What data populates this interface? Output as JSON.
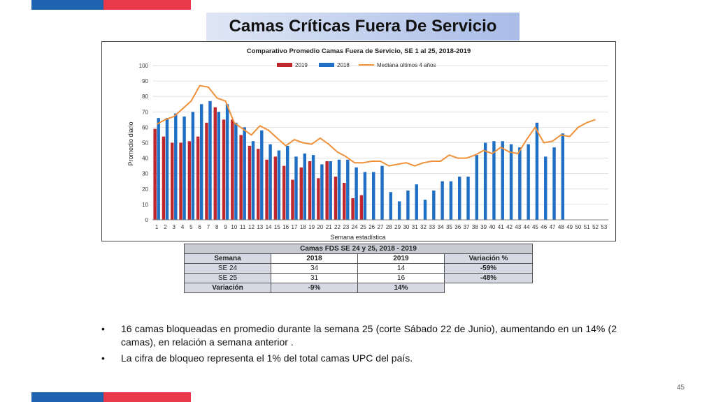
{
  "slide": {
    "title": "Camas Críticas Fuera De Servicio",
    "page_number": "45"
  },
  "colors": {
    "brand_blue": "#1f64b0",
    "brand_red": "#e8394a",
    "series_2019": "#c0272d",
    "series_2018": "#1f6fc5",
    "series_mediana": "#f0913a"
  },
  "chart_data": {
    "type": "bar",
    "title": "Comparativo Promedio Camas Fuera de Servicio, SE 1 al 25, 2018-2019",
    "xlabel": "Semana estadística",
    "ylabel": "Promedio diario",
    "ylim": [
      0,
      100
    ],
    "yticks": [
      0,
      10,
      20,
      30,
      40,
      50,
      60,
      70,
      80,
      90,
      100
    ],
    "grid": true,
    "legend_position": "top",
    "categories": [
      "1",
      "2",
      "3",
      "4",
      "5",
      "6",
      "7",
      "8",
      "9",
      "10",
      "11",
      "12",
      "13",
      "14",
      "15",
      "16",
      "17",
      "18",
      "19",
      "20",
      "21",
      "22",
      "23",
      "24",
      "25",
      "26",
      "27",
      "28",
      "29",
      "30",
      "31",
      "32",
      "33",
      "34",
      "35",
      "36",
      "37",
      "38",
      "39",
      "40",
      "41",
      "42",
      "43",
      "44",
      "45",
      "46",
      "47",
      "48",
      "49",
      "50",
      "51",
      "52",
      "53"
    ],
    "series": [
      {
        "name": "2019",
        "kind": "bar",
        "values": [
          59,
          54,
          50,
          50,
          51,
          54,
          63,
          73,
          65,
          65,
          55,
          48,
          46,
          39,
          41,
          35,
          26,
          34,
          38,
          27,
          38,
          28,
          24,
          14,
          16,
          null,
          null,
          null,
          null,
          null,
          null,
          null,
          null,
          null,
          null,
          null,
          null,
          null,
          null,
          null,
          null,
          null,
          null,
          null,
          null,
          null,
          null,
          null,
          null,
          null,
          null,
          null,
          null
        ]
      },
      {
        "name": "2018",
        "kind": "bar",
        "values": [
          66,
          66,
          69,
          67,
          70,
          75,
          77,
          70,
          75,
          63,
          60,
          51,
          58,
          49,
          45,
          48,
          41,
          43,
          42,
          36,
          38,
          39,
          39,
          34,
          31,
          31,
          35,
          18,
          12,
          19,
          23,
          13,
          19,
          25,
          25,
          28,
          28,
          42,
          50,
          51,
          51,
          49,
          47,
          49,
          63,
          41,
          47,
          56,
          null,
          null,
          null,
          null,
          null
        ]
      },
      {
        "name": "Mediana últimos 4 años",
        "kind": "line",
        "values": [
          62,
          65,
          67,
          72,
          77,
          87,
          86,
          79,
          77,
          63,
          59,
          55,
          61,
          58,
          53,
          48,
          52,
          50,
          49,
          53,
          49,
          44,
          41,
          37,
          37,
          38,
          38,
          35,
          36,
          37,
          35,
          37,
          38,
          38,
          42,
          40,
          40,
          42,
          45,
          43,
          47,
          44,
          43,
          52,
          60,
          50,
          51,
          55,
          54,
          60,
          63,
          65,
          null
        ]
      }
    ]
  },
  "table": {
    "caption": "Camas FDS SE 24 y 25, 2018 - 2019",
    "headers": [
      "Semana",
      "2018",
      "2019",
      "Variación %"
    ],
    "rows": [
      [
        "SE 24",
        "34",
        "14",
        "-59%"
      ],
      [
        "SE 25",
        "31",
        "16",
        "-48%"
      ]
    ],
    "variation_row": [
      "Variación",
      "-9%",
      "14%"
    ]
  },
  "bullets": [
    "16 camas bloqueadas en promedio durante la semana 25 (corte Sábado 22 de Junio), aumentando en un 14% (2 camas),  en relación a semana anterior .",
    "La cifra de bloqueo representa el 1% del total camas UPC del país."
  ]
}
